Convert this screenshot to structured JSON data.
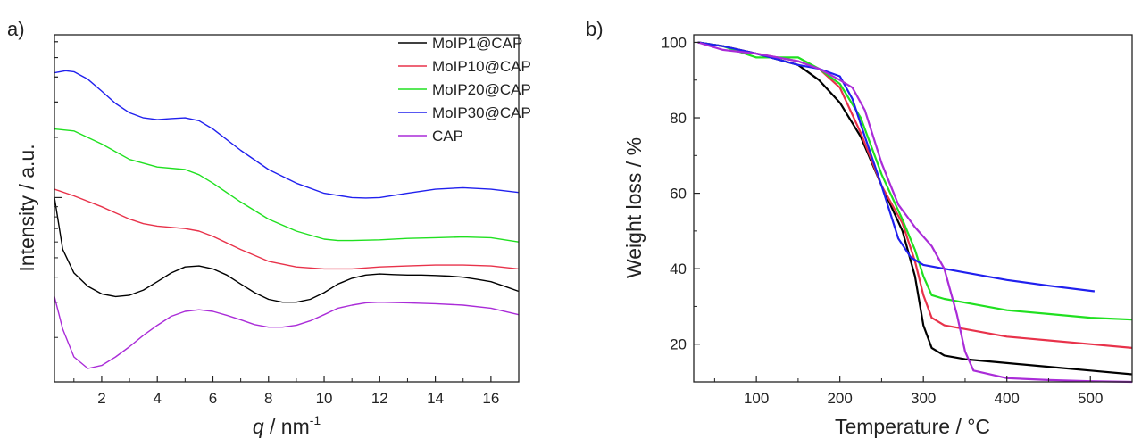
{
  "figure": {
    "panel_a_label": "a)",
    "panel_b_label": "b)"
  },
  "chart_data": [
    {
      "type": "line",
      "panel": "a)",
      "xlabel_italic": "q",
      "xlabel_rest": " / nm",
      "xlabel_superscript": "-1",
      "ylabel": "Intensity / a.u.",
      "xlim": [
        0.3,
        17
      ],
      "x_ticks": [
        2,
        4,
        6,
        8,
        10,
        12,
        14,
        16
      ],
      "y_scale": "log",
      "y_tick_labels_shown": false,
      "legend_position": "top-right",
      "grid": false,
      "note_values": "relative intensity, arbitrary units (log scale, no tick labels printed)",
      "series": [
        {
          "name": "MoIP1@CAP",
          "color": "#000000",
          "x": [
            0.3,
            0.6,
            1.0,
            1.5,
            2.0,
            2.5,
            3.0,
            3.5,
            4.0,
            4.5,
            5.0,
            5.5,
            6.0,
            6.5,
            7.0,
            7.5,
            8.0,
            8.5,
            9.0,
            9.5,
            10.0,
            10.5,
            11.0,
            11.5,
            12.0,
            12.5,
            13.0,
            13.5,
            14.0,
            14.5,
            15.0,
            15.5,
            16.0,
            16.5,
            17.0
          ],
          "y": [
            1.0,
            0.55,
            0.42,
            0.36,
            0.33,
            0.32,
            0.325,
            0.345,
            0.38,
            0.42,
            0.45,
            0.455,
            0.44,
            0.41,
            0.37,
            0.335,
            0.31,
            0.3,
            0.3,
            0.31,
            0.335,
            0.37,
            0.395,
            0.41,
            0.415,
            0.412,
            0.41,
            0.41,
            0.408,
            0.405,
            0.4,
            0.39,
            0.38,
            0.36,
            0.34
          ]
        },
        {
          "name": "MoIP10@CAP",
          "color": "#e8324a",
          "x": [
            0.3,
            1.0,
            2.0,
            3.0,
            3.5,
            4.0,
            5.0,
            5.5,
            6.0,
            7.0,
            8.0,
            9.0,
            10.0,
            11.0,
            12.0,
            13.0,
            14.0,
            15.0,
            16.0,
            17.0
          ],
          "y": [
            1.1,
            1.02,
            0.9,
            0.78,
            0.74,
            0.72,
            0.7,
            0.68,
            0.64,
            0.55,
            0.48,
            0.45,
            0.44,
            0.44,
            0.45,
            0.455,
            0.46,
            0.46,
            0.455,
            0.44
          ]
        },
        {
          "name": "MoIP20@CAP",
          "color": "#20e020",
          "x": [
            0.3,
            1.0,
            2.0,
            3.0,
            4.0,
            5.0,
            5.5,
            6.0,
            7.0,
            8.0,
            9.0,
            10.0,
            10.5,
            11.0,
            12.0,
            13.0,
            14.0,
            15.0,
            16.0,
            17.0
          ],
          "y": [
            2.2,
            2.15,
            1.85,
            1.55,
            1.42,
            1.38,
            1.3,
            1.18,
            0.95,
            0.78,
            0.68,
            0.62,
            0.61,
            0.61,
            0.615,
            0.625,
            0.63,
            0.635,
            0.63,
            0.6
          ]
        },
        {
          "name": "MoIP30@CAP",
          "color": "#2020ee",
          "x": [
            0.3,
            0.7,
            1.0,
            1.5,
            2.0,
            2.5,
            3.0,
            3.5,
            4.0,
            4.5,
            5.0,
            5.5,
            6.0,
            7.0,
            8.0,
            9.0,
            10.0,
            11.0,
            11.5,
            12.0,
            13.0,
            14.0,
            15.0,
            16.0,
            17.0
          ],
          "y": [
            4.2,
            4.3,
            4.25,
            3.9,
            3.4,
            2.95,
            2.65,
            2.5,
            2.45,
            2.48,
            2.5,
            2.42,
            2.2,
            1.72,
            1.38,
            1.18,
            1.05,
            1.0,
            0.995,
            1.0,
            1.05,
            1.1,
            1.12,
            1.1,
            1.06
          ]
        },
        {
          "name": "CAP",
          "color": "#aa2cd8",
          "x": [
            0.3,
            0.6,
            1.0,
            1.5,
            2.0,
            2.5,
            3.0,
            3.5,
            4.0,
            4.5,
            5.0,
            5.5,
            6.0,
            6.5,
            7.0,
            7.5,
            8.0,
            8.5,
            9.0,
            9.5,
            10.0,
            10.5,
            11.0,
            11.5,
            12.0,
            13.0,
            14.0,
            15.0,
            16.0,
            17.0
          ],
          "y": [
            0.32,
            0.22,
            0.16,
            0.14,
            0.145,
            0.16,
            0.18,
            0.205,
            0.23,
            0.255,
            0.27,
            0.275,
            0.27,
            0.258,
            0.245,
            0.232,
            0.225,
            0.225,
            0.23,
            0.242,
            0.26,
            0.28,
            0.29,
            0.298,
            0.3,
            0.298,
            0.295,
            0.29,
            0.28,
            0.26
          ]
        }
      ]
    },
    {
      "type": "line",
      "panel": "b)",
      "xlabel": "Temperature / °C",
      "ylabel": "Weight loss / %",
      "xlim": [
        25,
        550
      ],
      "ylim": [
        10,
        102
      ],
      "x_ticks": [
        100,
        200,
        300,
        400,
        500
      ],
      "y_ticks": [
        20,
        40,
        60,
        80,
        100
      ],
      "legend_position": "none",
      "grid": false,
      "series": [
        {
          "name": "MoIP1@CAP",
          "color": "#000000",
          "x": [
            30,
            60,
            100,
            150,
            175,
            200,
            225,
            250,
            275,
            290,
            300,
            310,
            325,
            350,
            400,
            450,
            500,
            550
          ],
          "y": [
            100,
            99,
            97,
            94,
            90,
            84,
            75,
            62,
            50,
            38,
            25,
            19,
            17,
            16,
            15,
            14,
            13,
            12
          ]
        },
        {
          "name": "MoIP10@CAP",
          "color": "#e8324a",
          "x": [
            30,
            60,
            100,
            150,
            175,
            200,
            225,
            250,
            275,
            290,
            300,
            310,
            325,
            350,
            400,
            450,
            500,
            550
          ],
          "y": [
            100,
            99,
            97,
            95,
            93,
            88,
            76,
            62,
            52,
            42,
            33,
            27,
            25,
            24,
            22,
            21,
            20,
            19
          ]
        },
        {
          "name": "MoIP20@CAP",
          "color": "#20e020",
          "x": [
            30,
            60,
            100,
            150,
            175,
            200,
            225,
            250,
            275,
            290,
            300,
            310,
            325,
            350,
            400,
            450,
            500,
            550
          ],
          "y": [
            100,
            99,
            96,
            96,
            93,
            89,
            80,
            65,
            53,
            45,
            38,
            33,
            32,
            31,
            29,
            28,
            27,
            26.5
          ]
        },
        {
          "name": "MoIP30@CAP",
          "color": "#2020ee",
          "x": [
            30,
            60,
            100,
            150,
            175,
            200,
            215,
            230,
            250,
            270,
            285,
            300,
            325,
            350,
            400,
            450,
            505
          ],
          "y": [
            100,
            99,
            97,
            94,
            93,
            91,
            85,
            75,
            62,
            48,
            43,
            41,
            40,
            39,
            37,
            35.5,
            34
          ]
        },
        {
          "name": "CAP",
          "color": "#aa2cd8",
          "x": [
            30,
            60,
            100,
            150,
            175,
            200,
            215,
            230,
            250,
            270,
            290,
            310,
            325,
            340,
            350,
            360,
            400,
            450,
            500,
            550
          ],
          "y": [
            100,
            98,
            97,
            95,
            93,
            90,
            88,
            82,
            68,
            57,
            51,
            46,
            40,
            28,
            18,
            13,
            11,
            10.5,
            10.2,
            10
          ]
        }
      ]
    }
  ]
}
